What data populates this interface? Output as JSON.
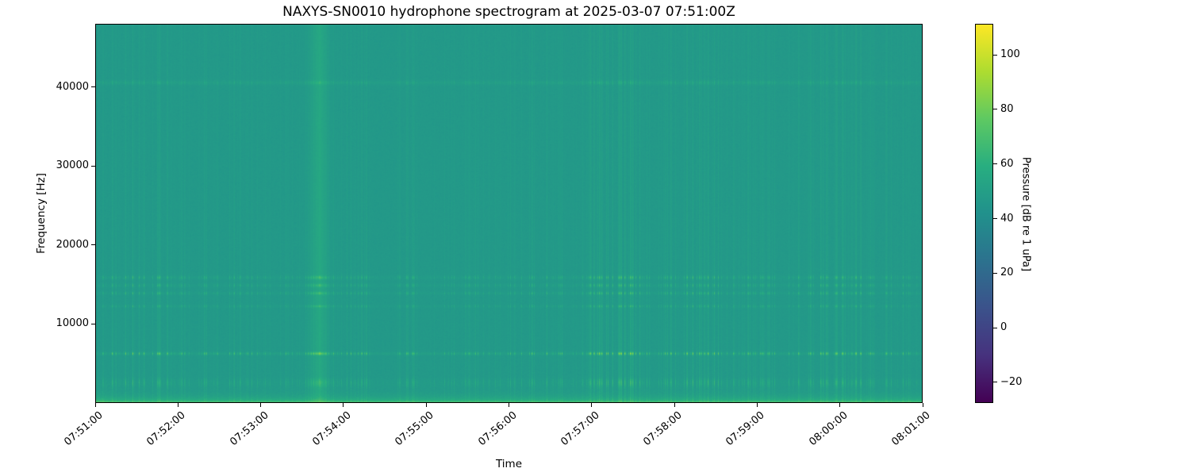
{
  "chart_data": {
    "type": "heatmap",
    "subtype": "spectrogram",
    "title": "NAXYS-SN0010 hydrophone spectrogram at 2025-03-07 07:51:00Z",
    "xlabel": "Time",
    "ylabel": "Frequency [Hz]",
    "x_tick_labels": [
      "07:51:00",
      "07:52:00",
      "07:53:00",
      "07:54:00",
      "07:55:00",
      "07:56:00",
      "07:57:00",
      "07:58:00",
      "07:59:00",
      "08:00:00",
      "08:01:00"
    ],
    "x_range_seconds": [
      0,
      600
    ],
    "y_tick_values": [
      10000,
      20000,
      30000,
      40000
    ],
    "y_tick_labels": [
      "10000",
      "20000",
      "30000",
      "40000"
    ],
    "y_range_hz": [
      0,
      48000
    ],
    "grid": false,
    "colorbar": {
      "label": "Pressure [dB re 1 uPa]",
      "tick_values": [
        100,
        80,
        60,
        40,
        20,
        0,
        -20
      ],
      "tick_labels": [
        "100",
        "80",
        "60",
        "40",
        "20",
        "0",
        "−20"
      ],
      "value_range_db": [
        -27.6,
        111.4
      ],
      "colormap": "viridis",
      "colormap_anchors": [
        [
          0.0,
          "#440154"
        ],
        [
          0.125,
          "#46327e"
        ],
        [
          0.25,
          "#3b528b"
        ],
        [
          0.375,
          "#2c728e"
        ],
        [
          0.5,
          "#21918c"
        ],
        [
          0.625,
          "#28ae80"
        ],
        [
          0.75,
          "#5ec962"
        ],
        [
          0.875,
          "#addc30"
        ],
        [
          1.0,
          "#fde725"
        ]
      ]
    },
    "features": {
      "background_level_db": 46.5,
      "tonal_bands": [
        {
          "freq_hz": 6230,
          "sigma_hz": 130,
          "strength_db": 36
        },
        {
          "freq_hz": 12250,
          "sigma_hz": 110,
          "strength_db": 15
        },
        {
          "freq_hz": 13900,
          "sigma_hz": 130,
          "strength_db": 18
        },
        {
          "freq_hz": 14900,
          "sigma_hz": 150,
          "strength_db": 16
        },
        {
          "freq_hz": 15900,
          "sigma_hz": 160,
          "strength_db": 19
        },
        {
          "freq_hz": 40670,
          "sigma_hz": 160,
          "strength_db": 8
        },
        {
          "freq_hz": 2750,
          "sigma_hz": 260,
          "strength_db": 8
        },
        {
          "freq_hz": 2350,
          "sigma_hz": 300,
          "strength_db": 10
        }
      ],
      "continuous_line": {
        "freq_hz": 40670,
        "boost_db": 1.8,
        "sigma_hz": 300
      },
      "broadband_event": {
        "time_s": 162,
        "sigma_s": 4,
        "boost_db": 8
      },
      "low_freq_noise": {
        "cutoff_hz": 520,
        "boost_db": 21,
        "floor_line_db": 12,
        "floor_line_cutoff_hz": 90
      },
      "left_edge_blotch": {
        "width_s": 15,
        "boost_db": 7,
        "cutoff_hz": 1600
      },
      "striations": {
        "seed": 123456789,
        "base_density": 0.26,
        "envelope_density": 0.34,
        "broadband_db": 3.5,
        "broadband_lowfreq_db": 5.0
      }
    }
  }
}
